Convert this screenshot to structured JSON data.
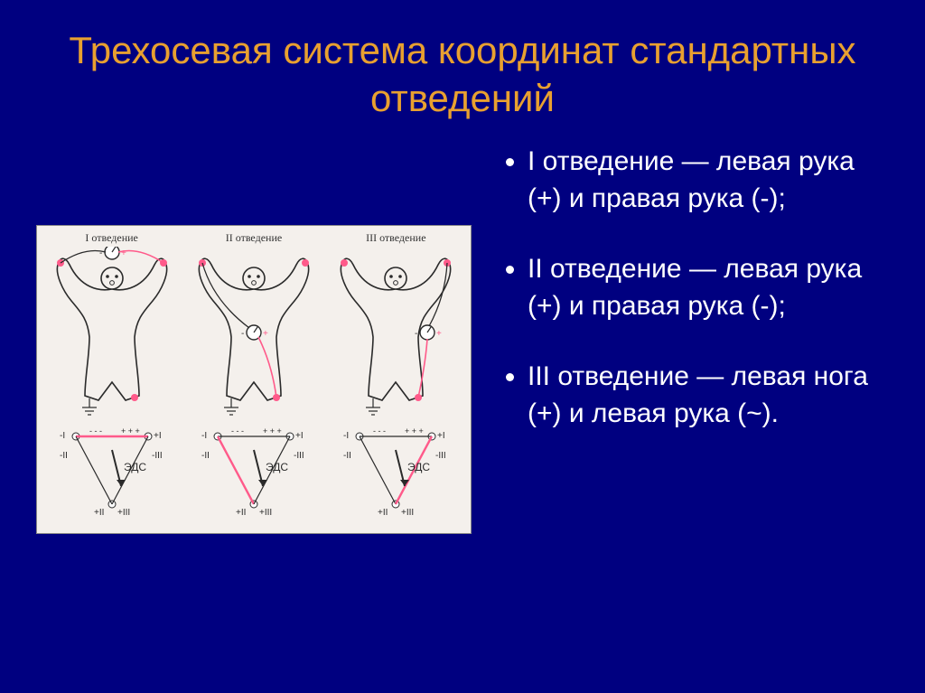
{
  "title": "Трехосевая система координат стандартных отведений",
  "title_color": "#e8a030",
  "background_color": "#000080",
  "text_color": "#ffffff",
  "title_fontsize": 42,
  "body_fontsize": 30,
  "bullets": [
    {
      "label": "I  отведение",
      "desc": " — левая рука  (+) и правая рука  (-);"
    },
    {
      "label": "II  отведение",
      "desc": " — левая рука  (+) и правая рука  (-);"
    },
    {
      "label": "III  отведение",
      "desc": " — левая нога  (+) и левая рука  (~)."
    }
  ],
  "diagram": {
    "background": "#f4f0ec",
    "stroke_color": "#2a2a2a",
    "accent_color": "#ff5a8a",
    "figures": [
      {
        "label": "I отведение",
        "highlight_side": "I"
      },
      {
        "label": "II отведение",
        "highlight_side": "II"
      },
      {
        "label": "III отведение",
        "highlight_side": "III"
      }
    ],
    "triangle_label": "ЭДС",
    "triangle_vertices": {
      "topLeft": {
        "mark": "-I"
      },
      "topRight": {
        "mark": "+I"
      },
      "bottom": {
        "mark": "+II / +III"
      }
    }
  }
}
